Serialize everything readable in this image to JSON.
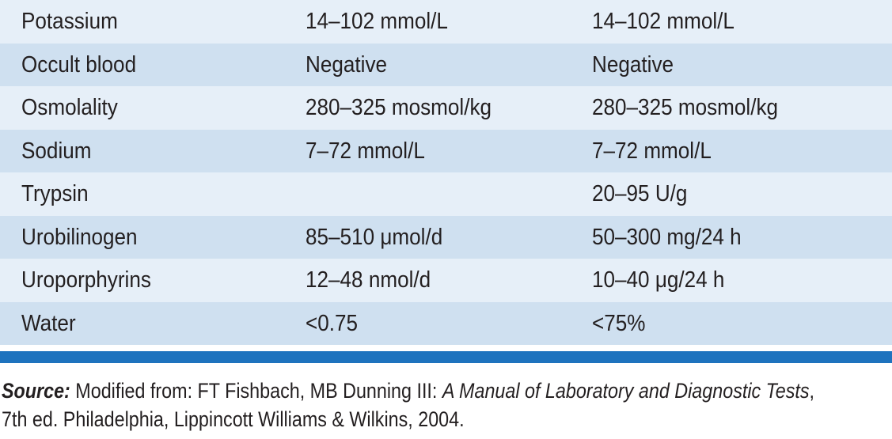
{
  "table": {
    "rows": [
      {
        "name": "Potassium",
        "si": "14–102 mmol/L",
        "conventional": "14–102 mmol/L"
      },
      {
        "name": "Occult blood",
        "si": "Negative",
        "conventional": "Negative"
      },
      {
        "name": "Osmolality",
        "si": "280–325 mosmol/kg",
        "conventional": "280–325 mosmol/kg"
      },
      {
        "name": "Sodium",
        "si": "7–72 mmol/L",
        "conventional": "7–72 mmol/L"
      },
      {
        "name": "Trypsin",
        "si": "",
        "conventional": "20–95 U/g"
      },
      {
        "name": "Urobilinogen",
        "si": "85–510 μmol/d",
        "conventional": "50–300 mg/24 h"
      },
      {
        "name": "Uroporphyrins",
        "si": "12–48 nmol/d",
        "conventional": "10–40 μg/24 h"
      },
      {
        "name": "Water",
        "si": "<0.75",
        "conventional": "<75%"
      }
    ]
  },
  "source": {
    "label": "Source:",
    "text_before": " Modified from: FT Fishbach, MB Dunning III: ",
    "book_title": "A Manual of Laboratory and Diagnostic Tests",
    "text_after": ", 7th ed. Philadelphia, Lippincott Williams & Wilkins, 2004."
  },
  "colors": {
    "row_light": "#e6eff8",
    "row_dark": "#cfe0f0",
    "rule_blue": "#1e73be",
    "text": "#231f20"
  }
}
